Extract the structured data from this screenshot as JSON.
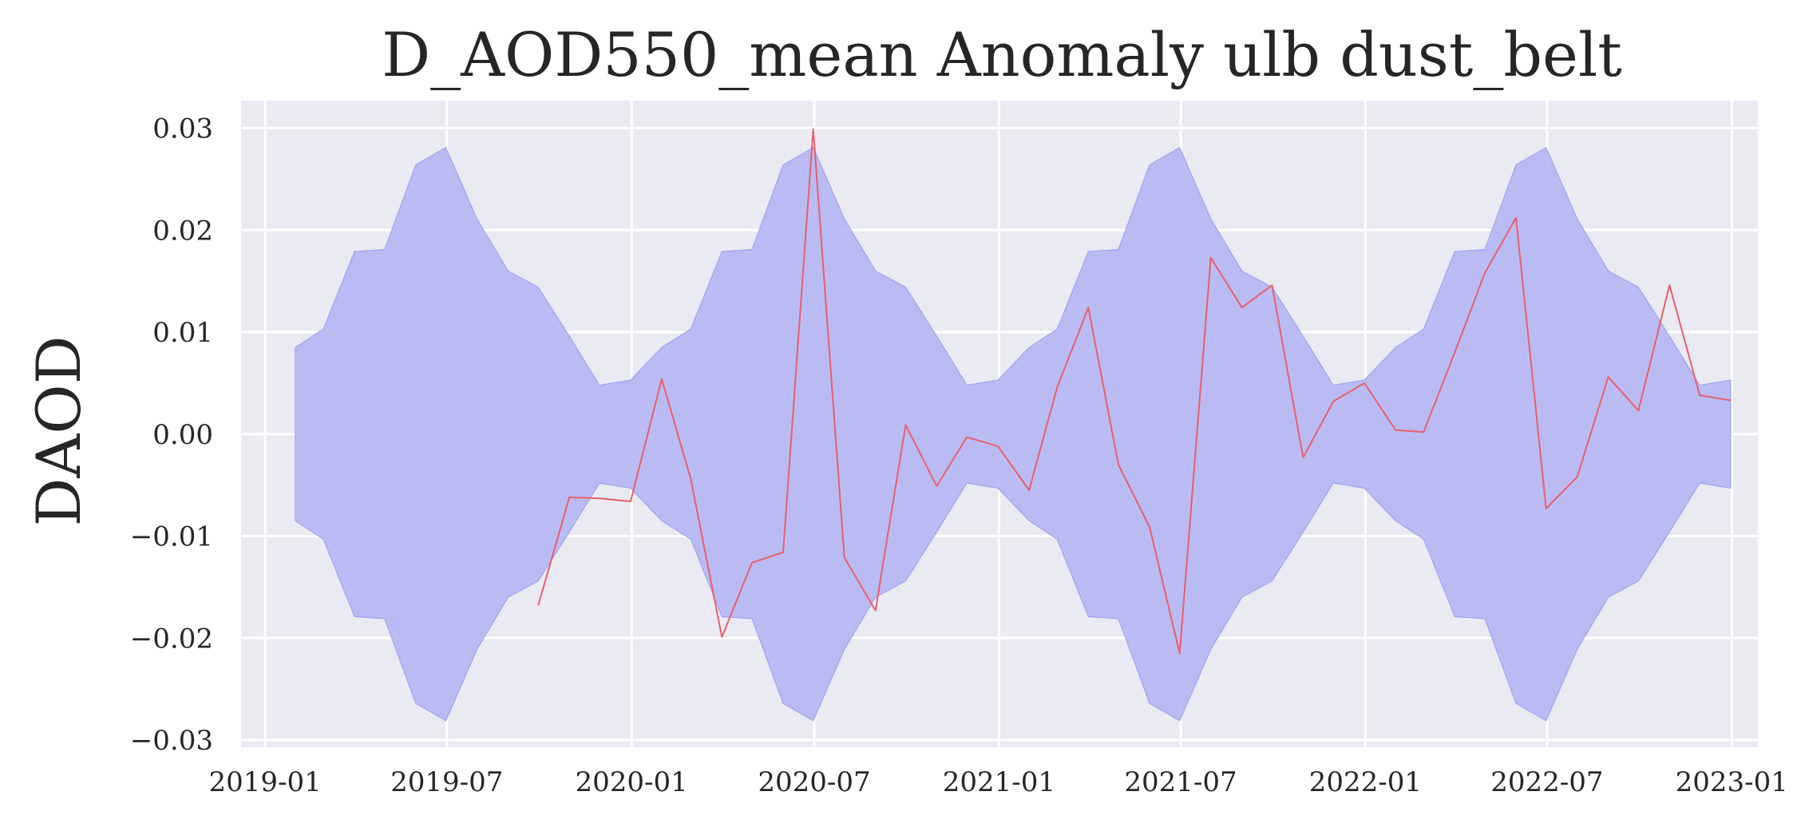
{
  "chart_data": {
    "type": "line",
    "title": "D_AOD550_mean Anomaly ulb dust_belt",
    "xlabel": "",
    "ylabel": "DAOD",
    "x_ticks": [
      "2019-01",
      "2019-07",
      "2020-01",
      "2020-07",
      "2021-01",
      "2021-07",
      "2022-01",
      "2022-07",
      "2023-01"
    ],
    "y_ticks": [
      "0.03",
      "0.02",
      "0.01",
      "0.00",
      "−0.01",
      "−0.02",
      "−0.03"
    ],
    "xlim": [
      "2018-12-08",
      "2023-01-27"
    ],
    "ylim": [
      -0.0307,
      0.0327
    ],
    "grid": true,
    "colors": {
      "background": "#eaeaf2",
      "grid": "#ffffff",
      "band": "#b8b8f3",
      "band_edge": "#9a9af0",
      "line": "#e8606a"
    },
    "band": {
      "name": "",
      "x": [
        "2019-01-31",
        "2019-02-28",
        "2019-03-31",
        "2019-04-30",
        "2019-05-31",
        "2019-06-30",
        "2019-07-31",
        "2019-08-31",
        "2019-09-30",
        "2019-10-31",
        "2019-11-30",
        "2019-12-31",
        "2020-01-31",
        "2020-02-29",
        "2020-03-31",
        "2020-04-30",
        "2020-05-31",
        "2020-06-30",
        "2020-07-31",
        "2020-08-31",
        "2020-09-30",
        "2020-10-31",
        "2020-11-30",
        "2020-12-31",
        "2021-01-31",
        "2021-02-28",
        "2021-03-31",
        "2021-04-30",
        "2021-05-31",
        "2021-06-30",
        "2021-07-31",
        "2021-08-31",
        "2021-09-30",
        "2021-10-31",
        "2021-11-30",
        "2021-12-31",
        "2022-01-31",
        "2022-02-28",
        "2022-03-31",
        "2022-04-30",
        "2022-05-31",
        "2022-06-30",
        "2022-07-31",
        "2022-08-31",
        "2022-09-30",
        "2022-10-31",
        "2022-11-30",
        "2022-12-31"
      ],
      "upper": [
        0.0085,
        0.0103,
        0.0179,
        0.0181,
        0.0264,
        0.0281,
        0.0211,
        0.016,
        0.0144,
        0.0096,
        0.0048,
        0.0053,
        0.0085,
        0.0103,
        0.0179,
        0.0181,
        0.0264,
        0.0281,
        0.0211,
        0.016,
        0.0144,
        0.0096,
        0.0048,
        0.0053,
        0.0085,
        0.0103,
        0.0179,
        0.0181,
        0.0264,
        0.0281,
        0.0211,
        0.016,
        0.0144,
        0.0096,
        0.0048,
        0.0053,
        0.0085,
        0.0103,
        0.0179,
        0.0181,
        0.0264,
        0.0281,
        0.0211,
        0.016,
        0.0144,
        0.0096,
        0.0048,
        0.0053
      ],
      "lower": [
        -0.0085,
        -0.0103,
        -0.0179,
        -0.0181,
        -0.0264,
        -0.0281,
        -0.0211,
        -0.016,
        -0.0144,
        -0.0096,
        -0.0048,
        -0.0053,
        -0.0085,
        -0.0103,
        -0.0179,
        -0.0181,
        -0.0264,
        -0.0281,
        -0.0211,
        -0.016,
        -0.0144,
        -0.0096,
        -0.0048,
        -0.0053,
        -0.0085,
        -0.0103,
        -0.0179,
        -0.0181,
        -0.0264,
        -0.0281,
        -0.0211,
        -0.016,
        -0.0144,
        -0.0096,
        -0.0048,
        -0.0053,
        -0.0085,
        -0.0103,
        -0.0179,
        -0.0181,
        -0.0264,
        -0.0281,
        -0.0211,
        -0.016,
        -0.0144,
        -0.0096,
        -0.0048,
        -0.0053
      ]
    },
    "series": [
      {
        "x": [
          "2019-09-30",
          "2019-10-31",
          "2019-11-30",
          "2019-12-31",
          "2020-01-31",
          "2020-02-29",
          "2020-03-31",
          "2020-04-30",
          "2020-05-31",
          "2020-06-30",
          "2020-07-31",
          "2020-08-31",
          "2020-09-30",
          "2020-10-31",
          "2020-11-30",
          "2020-12-31",
          "2021-01-31",
          "2021-02-28",
          "2021-03-31",
          "2021-04-30",
          "2021-05-31",
          "2021-06-30",
          "2021-07-31",
          "2021-08-31",
          "2021-09-30",
          "2021-10-31",
          "2021-11-30",
          "2021-12-31",
          "2022-01-31",
          "2022-02-28",
          "2022-03-31",
          "2022-04-30",
          "2022-05-31",
          "2022-06-30",
          "2022-07-31",
          "2022-08-31",
          "2022-09-30",
          "2022-10-31",
          "2022-11-30",
          "2022-12-31"
        ],
        "values": [
          -0.0168,
          -0.0062,
          -0.0063,
          -0.0066,
          0.0054,
          -0.0044,
          -0.0199,
          -0.0126,
          -0.0116,
          0.0299,
          -0.0121,
          -0.0173,
          0.0009,
          -0.0051,
          -0.0003,
          -0.0012,
          -0.0055,
          0.0046,
          0.0124,
          -0.003,
          -0.0091,
          -0.0215,
          0.0173,
          0.0124,
          0.0146,
          -0.0023,
          0.0032,
          0.005,
          0.0004,
          0.0002,
          0.008,
          0.0158,
          0.0212,
          -0.0073,
          -0.0042,
          0.0056,
          0.0023,
          0.0146,
          0.0038,
          0.0033
        ]
      }
    ]
  }
}
